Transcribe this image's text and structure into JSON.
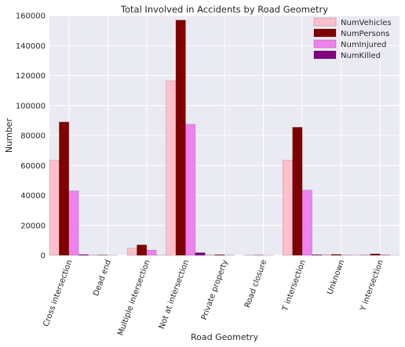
{
  "chart_data": {
    "type": "bar",
    "title": "Total Involved in Accidents by Road Geometry",
    "xlabel": "Road Geometry",
    "ylabel": "Number",
    "ylim": [
      0,
      160000
    ],
    "yticks": [
      "0",
      "20000",
      "40000",
      "60000",
      "80000",
      "100000",
      "120000",
      "140000",
      "160000"
    ],
    "grid": true,
    "legend_position": "top-right",
    "categories": [
      "Cross intersection",
      "Dead end",
      "Multiple intersection",
      "Not at intersection",
      "Private property",
      "Road closure",
      "T intersection",
      "Unknown",
      "Y intersection"
    ],
    "series": [
      {
        "name": "NumVehicles",
        "color": "#ffc0cb",
        "values": [
          63500,
          200,
          4800,
          116500,
          300,
          150,
          63500,
          500,
          400
        ]
      },
      {
        "name": "NumPersons",
        "color": "#800000",
        "values": [
          89000,
          200,
          7000,
          157000,
          400,
          150,
          85500,
          600,
          1000
        ]
      },
      {
        "name": "NumInjured",
        "color": "#ee82ee",
        "values": [
          43000,
          50,
          3500,
          87500,
          100,
          50,
          43500,
          200,
          400
        ]
      },
      {
        "name": "NumKilled",
        "color": "#800080",
        "values": [
          500,
          0,
          50,
          1800,
          0,
          0,
          400,
          50,
          10
        ]
      }
    ]
  }
}
